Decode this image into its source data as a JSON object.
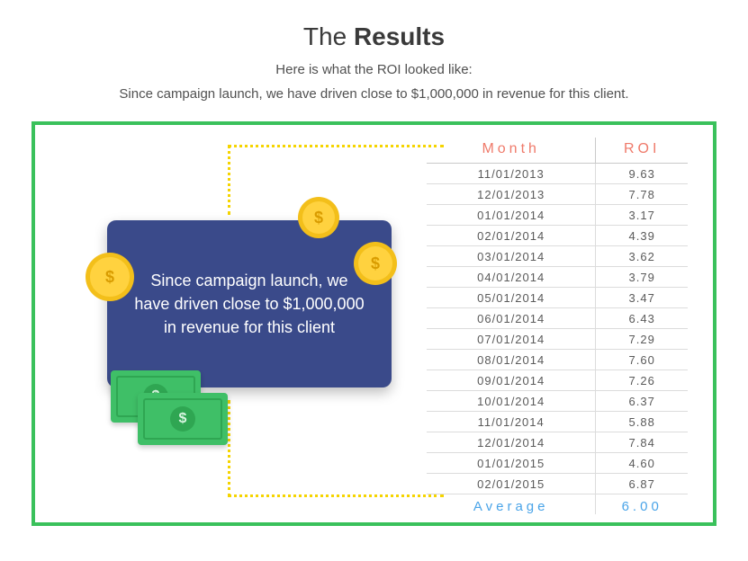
{
  "header": {
    "title_pre": "The ",
    "title_bold": "Results",
    "subtitle": "Here is what the ROI looked like:",
    "lead": "Since campaign launch, we have driven close to $1,000,000 in revenue for this client."
  },
  "callout": {
    "text": "Since campaign launch, we have driven close to $1,000,000 in revenue for this client"
  },
  "table": {
    "type": "table",
    "columns": [
      "Month",
      "ROI"
    ],
    "rows": [
      [
        "11/01/2013",
        "9.63"
      ],
      [
        "12/01/2013",
        "7.78"
      ],
      [
        "01/01/2014",
        "3.17"
      ],
      [
        "02/01/2014",
        "4.39"
      ],
      [
        "03/01/2014",
        "3.62"
      ],
      [
        "04/01/2014",
        "3.79"
      ],
      [
        "05/01/2014",
        "3.47"
      ],
      [
        "06/01/2014",
        "6.43"
      ],
      [
        "07/01/2014",
        "7.29"
      ],
      [
        "08/01/2014",
        "7.60"
      ],
      [
        "09/01/2014",
        "7.26"
      ],
      [
        "10/01/2014",
        "6.37"
      ],
      [
        "11/01/2014",
        "5.88"
      ],
      [
        "12/01/2014",
        "7.84"
      ],
      [
        "01/01/2015",
        "4.60"
      ],
      [
        "02/01/2015",
        "6.87"
      ]
    ],
    "footer": [
      "Average",
      "6.00"
    ],
    "header_color": "#ef7a6a",
    "footer_color": "#4aa4e8",
    "cell_text_color": "#5a5a5a",
    "border_color": "#dcdcdc",
    "header_fontsize": 16,
    "cell_fontsize": 13,
    "letter_spacing_header": 4,
    "letter_spacing_cell": 1
  },
  "style": {
    "panel_border_color": "#3ac15b",
    "dotted_path_color": "#f5d400",
    "card_bg": "#3a4a8a",
    "card_text_color": "#ffffff",
    "coin_rim": "#f3bf1a",
    "coin_face": "#ffd23f",
    "coin_symbol_color": "#d99c00",
    "cash_bg": "#3fbf67",
    "cash_accent": "#2fa652",
    "background": "#ffffff"
  },
  "icons": {
    "dollar": "$"
  }
}
